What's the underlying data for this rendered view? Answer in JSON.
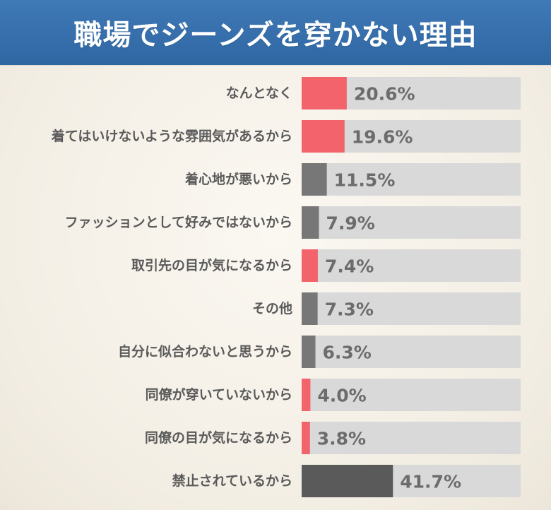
{
  "chart_data": {
    "type": "bar",
    "title": "職場でジーンズを穿かない理由",
    "unit": "%",
    "categories": [
      "なんとなく",
      "着てはいけないような雰囲気があるから",
      "着心地が悪いから",
      "ファッションとして好みではないから",
      "取引先の目が気になるから",
      "その他",
      "自分に似合わないと思うから",
      "同僚が穿いていないから",
      "同僚の目が気になるから",
      "禁止されているから"
    ],
    "values": [
      20.6,
      19.6,
      11.5,
      7.9,
      7.4,
      7.3,
      6.3,
      4.0,
      3.8,
      41.7
    ],
    "value_labels": [
      "20.6%",
      "19.6%",
      "11.5%",
      "7.9%",
      "7.4%",
      "7.3%",
      "6.3%",
      "4.0%",
      "3.8%",
      "41.7%"
    ],
    "bar_colors": [
      "#f2636b",
      "#f2636b",
      "#777777",
      "#777777",
      "#f2636b",
      "#777777",
      "#777777",
      "#f2636b",
      "#f2636b",
      "#5a5a5a"
    ],
    "track_color": "#d9d9d9",
    "xlim": [
      0,
      100
    ],
    "orientation": "horizontal",
    "grid": false
  }
}
